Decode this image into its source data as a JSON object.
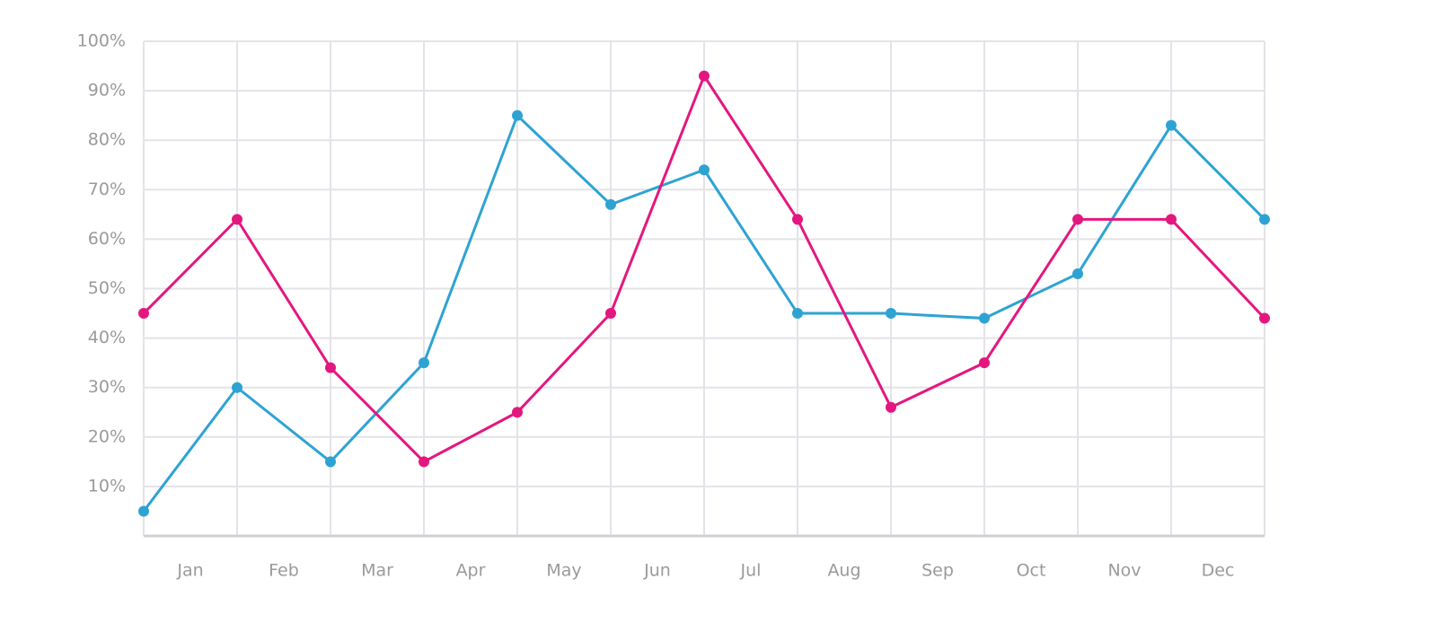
{
  "chart_data": {
    "type": "line",
    "x": [
      0,
      1,
      2,
      3,
      4,
      5,
      6,
      7,
      8,
      9,
      10,
      11,
      12
    ],
    "xlim": [
      0,
      12
    ],
    "xticks": [
      {
        "value": 0.5,
        "label": "Jan"
      },
      {
        "value": 1.5,
        "label": "Feb"
      },
      {
        "value": 2.5,
        "label": "Mar"
      },
      {
        "value": 3.5,
        "label": "Apr"
      },
      {
        "value": 4.5,
        "label": "May"
      },
      {
        "value": 5.5,
        "label": "Jun"
      },
      {
        "value": 6.5,
        "label": "Jul"
      },
      {
        "value": 7.5,
        "label": "Aug"
      },
      {
        "value": 8.5,
        "label": "Sep"
      },
      {
        "value": 9.5,
        "label": "Oct"
      },
      {
        "value": 10.5,
        "label": "Nov"
      },
      {
        "value": 11.5,
        "label": "Dec"
      }
    ],
    "ylim": [
      0,
      100
    ],
    "yticks": [
      {
        "value": 10,
        "label": "10%"
      },
      {
        "value": 20,
        "label": "20%"
      },
      {
        "value": 30,
        "label": "30%"
      },
      {
        "value": 40,
        "label": "40%"
      },
      {
        "value": 50,
        "label": "50%"
      },
      {
        "value": 60,
        "label": "60%"
      },
      {
        "value": 70,
        "label": "70%"
      },
      {
        "value": 80,
        "label": "80%"
      },
      {
        "value": 90,
        "label": "90%"
      },
      {
        "value": 100,
        "label": "100%"
      }
    ],
    "grid": true,
    "series": [
      {
        "color": "#2ea3d3",
        "values": [
          5,
          30,
          15,
          35,
          85,
          67,
          74,
          45,
          45,
          44,
          53,
          83,
          64
        ]
      },
      {
        "color": "#e4177f",
        "values": [
          45,
          64,
          34,
          15,
          25,
          45,
          93,
          64,
          26,
          35,
          64,
          64,
          44
        ]
      }
    ]
  }
}
